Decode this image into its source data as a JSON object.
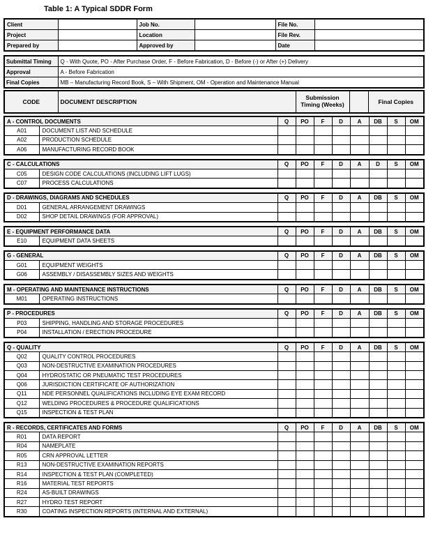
{
  "page_title": "Table 1: A Typical SDDR Form",
  "colors": {
    "border": "#000000",
    "header_bg": "#f2f2f2",
    "page_bg": "#ffffff"
  },
  "info_table": {
    "rows": [
      {
        "cells": [
          {
            "label": "Client",
            "value": ""
          },
          {
            "label": "Job No.",
            "value": ""
          },
          {
            "label": "File No.",
            "value": ""
          }
        ]
      },
      {
        "cells": [
          {
            "label": "Project",
            "value": ""
          },
          {
            "label": "Location",
            "value": ""
          },
          {
            "label": "File Rev.",
            "value": ""
          }
        ]
      },
      {
        "cells": [
          {
            "label": "Prepared by",
            "value": ""
          },
          {
            "label": "Approved by",
            "value": ""
          },
          {
            "label": "Date",
            "value": ""
          }
        ]
      }
    ]
  },
  "legend_table": {
    "rows": [
      {
        "label": "Submittal Timing",
        "text": "Q - With Quote, PO - After Purchase Order, F - Before Fabrication, D - Before (-) or After (+) Delivery"
      },
      {
        "label": "Approval",
        "text": "A - Before Fabrication"
      },
      {
        "label": "Final Copies",
        "text": "MB – Manufacturing Record Book, S – With Shipment, OM - Operation and Maintenance Manual"
      }
    ]
  },
  "main_header": {
    "code_label": "CODE",
    "description_label": "DOCUMENT DESCRIPTION",
    "submission_label": "Submission Timing (Weeks)",
    "blank_label": "",
    "final_copies_label": "Final Copies"
  },
  "sections": [
    {
      "id": "A",
      "title": "A - CONTROL DOCUMENTS",
      "columns": [
        "Q",
        "PO",
        "F",
        "D",
        "A",
        "DB",
        "S",
        "OM"
      ],
      "rows": [
        {
          "code": "A01",
          "description": "DOCUMENT LIST AND SCHEDULE"
        },
        {
          "code": "A02",
          "description": "PRODUCTION SCHEDULE"
        },
        {
          "code": "A06",
          "description": "MANUFACTURING RECORD BOOK"
        }
      ]
    },
    {
      "id": "C",
      "title": "C - CALCULATIONS",
      "columns": [
        "Q",
        "PO",
        "F",
        "D",
        "A",
        "D",
        "S",
        "OM"
      ],
      "rows": [
        {
          "code": "C05",
          "description": "DESIGN CODE CALCULATIONS (INCLUDING LIFT LUGS)"
        },
        {
          "code": "C07",
          "description": "PROCESS CALCULATIONS"
        }
      ]
    },
    {
      "id": "D",
      "title": "D - DRAWINGS, DIAGRAMS AND SCHEDULES",
      "columns": [
        "Q",
        "PO",
        "F",
        "D",
        "A",
        "DB",
        "S",
        "OM"
      ],
      "rows": [
        {
          "code": "D01",
          "description": "GENERAL ARRANGEMENT DRAWINGS"
        },
        {
          "code": "D02",
          "description": "SHOP DETAIL DRAWINGS (FOR APPROVAL)"
        }
      ]
    },
    {
      "id": "E",
      "title": "E - EQUIPMENT PERFORMANCE DATA",
      "columns": [
        "Q",
        "PO",
        "F",
        "D",
        "A",
        "DB",
        "S",
        "OM"
      ],
      "rows": [
        {
          "code": "E10",
          "description": "EQUIPMENT DATA SHEETS"
        }
      ]
    },
    {
      "id": "G",
      "title": "G - GENERAL",
      "columns": [
        "Q",
        "PO",
        "F",
        "D",
        "A",
        "DB",
        "S",
        "OM"
      ],
      "rows": [
        {
          "code": "G01",
          "description": "EQUIPMENT WEIGHTS"
        },
        {
          "code": "G06",
          "description": "ASSEMBLY / DISASSEMBLY SIZES AND WEIGHTS"
        }
      ]
    },
    {
      "id": "M",
      "title": "M - OPERATING AND MAINTENANCE INSTRUCTIONS",
      "columns": [
        "Q",
        "PO",
        "F",
        "D",
        "A",
        "DB",
        "S",
        "OM"
      ],
      "rows": [
        {
          "code": "M01",
          "description": "OPERATING INSTRUCTIONS"
        }
      ]
    },
    {
      "id": "P",
      "title": "P - PROCEDURES",
      "columns": [
        "Q",
        "PO",
        "F",
        "D",
        "A",
        "DB",
        "S",
        "OM"
      ],
      "rows": [
        {
          "code": "P03",
          "description": "SHIPPING, HANDLING AND STORAGE PROCEDURES"
        },
        {
          "code": "P04",
          "description": "INSTALLATION / ERECTION PROCEDURE"
        }
      ]
    },
    {
      "id": "Q",
      "title": "Q - QUALITY",
      "columns": [
        "Q",
        "PO",
        "F",
        "D",
        "A",
        "DB",
        "S",
        "OM"
      ],
      "rows": [
        {
          "code": "Q02",
          "description": "QUALITY CONTROL PROCEDURES"
        },
        {
          "code": "Q03",
          "description": "NON-DESTRUCTIVE EXAMINATION PROCEDURES"
        },
        {
          "code": "Q04",
          "description": "HYDROSTATIC OR PNEUMATIC TEST PROCEDURES"
        },
        {
          "code": "Q06",
          "description": "JURISDICTION CERTIFICATE OF AUTHORIZATION"
        },
        {
          "code": "Q11",
          "description": "NDE PERSONNEL QUALIFICATIONS INCLUDING EYE EXAM RECORD"
        },
        {
          "code": "Q12",
          "description": "WELDING PROCEDURES & PROCEDURE QUALIFICATIONS"
        },
        {
          "code": "Q15",
          "description": "INSPECTION & TEST PLAN"
        }
      ]
    },
    {
      "id": "R",
      "title": "R - RECORDS, CERTIFICATES AND FORMS",
      "columns": [
        "Q",
        "PO",
        "F",
        "D",
        "A",
        "DB",
        "S",
        "OM"
      ],
      "rows": [
        {
          "code": "R01",
          "description": "DATA REPORT"
        },
        {
          "code": "R04",
          "description": "NAMEPLATE"
        },
        {
          "code": "R05",
          "description": "CRN APPROVAL LETTER"
        },
        {
          "code": "R13",
          "description": "NON-DESTRUCTIVE EXAMINATION REPORTS"
        },
        {
          "code": "R14",
          "description": "INSPECTION & TEST PLAN (COMPLETED)"
        },
        {
          "code": "R16",
          "description": "MATERIAL TEST REPORTS"
        },
        {
          "code": "R24",
          "description": "AS-BUILT DRAWINGS"
        },
        {
          "code": "R27",
          "description": "HYDRO TEST REPORT"
        },
        {
          "code": "R30",
          "description": "COATING INSPECTION REPORTS (INTERNAL AND EXTERNAL)"
        }
      ]
    }
  ]
}
